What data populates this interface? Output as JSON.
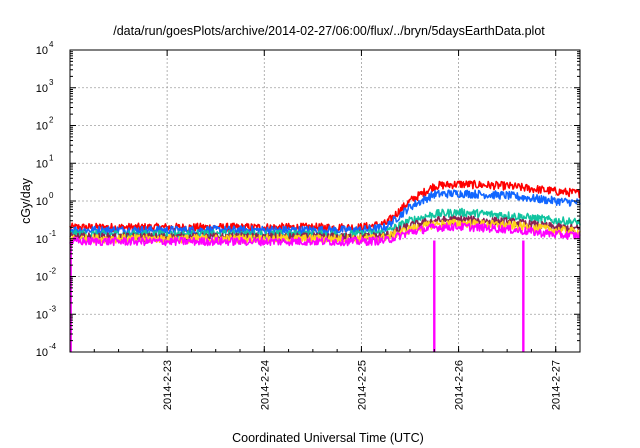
{
  "chart_data": {
    "type": "line",
    "title": "/data/run/goesPlots/archive/2014-02-27/06:00/flux/../bryn/5daysEarthData.plot",
    "xlabel": "Coordinated Universal Time (UTC)",
    "ylabel": "cGy/day",
    "y_scale": "log",
    "ylim": [
      0.0001,
      10000
    ],
    "y_ticks": [
      {
        "base": "10",
        "exp": "-4",
        "value": 0.0001
      },
      {
        "base": "10",
        "exp": "-3",
        "value": 0.001
      },
      {
        "base": "10",
        "exp": "-2",
        "value": 0.01
      },
      {
        "base": "10",
        "exp": "-1",
        "value": 0.1
      },
      {
        "base": "10",
        "exp": "0",
        "value": 1
      },
      {
        "base": "10",
        "exp": "1",
        "value": 10
      },
      {
        "base": "10",
        "exp": "2",
        "value": 100
      },
      {
        "base": "10",
        "exp": "3",
        "value": 1000
      },
      {
        "base": "10",
        "exp": "4",
        "value": 10000
      }
    ],
    "xlim": [
      "2014-02-22 00:00",
      "2014-02-27 06:00"
    ],
    "x_ticks": [
      "2014-2-23",
      "2014-2-24",
      "2014-2-25",
      "2014-2-26",
      "2014-2-27"
    ],
    "grid": true,
    "series": [
      {
        "color": "#ff0000",
        "x": [
          "2014-02-22 00:00",
          "2014-02-25 00:00",
          "2014-02-25 06:00",
          "2014-02-25 12:00",
          "2014-02-25 18:00",
          "2014-02-26 00:00",
          "2014-02-26 12:00",
          "2014-02-27 00:00",
          "2014-02-27 06:00"
        ],
        "values": [
          0.2,
          0.2,
          0.25,
          1.0,
          2.5,
          2.8,
          2.5,
          1.8,
          1.6
        ]
      },
      {
        "color": "#1166ff",
        "x": [
          "2014-02-22 00:00",
          "2014-02-25 00:00",
          "2014-02-25 06:00",
          "2014-02-25 12:00",
          "2014-02-25 18:00",
          "2014-02-26 00:00",
          "2014-02-26 12:00",
          "2014-02-27 00:00",
          "2014-02-27 06:00"
        ],
        "values": [
          0.17,
          0.17,
          0.2,
          0.7,
          1.5,
          1.6,
          1.4,
          1.0,
          0.9
        ]
      },
      {
        "color": "#11c4a0",
        "x": [
          "2014-02-22 00:00",
          "2014-02-25 00:00",
          "2014-02-25 06:00",
          "2014-02-25 12:00",
          "2014-02-25 18:00",
          "2014-02-26 00:00",
          "2014-02-26 12:00",
          "2014-02-27 00:00",
          "2014-02-27 06:00"
        ],
        "values": [
          0.13,
          0.13,
          0.15,
          0.3,
          0.45,
          0.5,
          0.42,
          0.3,
          0.27
        ]
      },
      {
        "color": "#8b2252",
        "x": [
          "2014-02-22 00:00",
          "2014-02-25 00:00",
          "2014-02-25 06:00",
          "2014-02-25 12:00",
          "2014-02-25 18:00",
          "2014-02-26 00:00",
          "2014-02-26 12:00",
          "2014-02-27 00:00",
          "2014-02-27 06:00"
        ],
        "values": [
          0.11,
          0.11,
          0.12,
          0.22,
          0.3,
          0.32,
          0.28,
          0.2,
          0.18
        ]
      },
      {
        "color": "#ffd21a",
        "x": [
          "2014-02-22 00:00",
          "2014-02-25 00:00",
          "2014-02-25 06:00",
          "2014-02-25 12:00",
          "2014-02-25 18:00",
          "2014-02-26 00:00",
          "2014-02-26 12:00",
          "2014-02-27 00:00",
          "2014-02-27 06:00"
        ],
        "values": [
          0.1,
          0.1,
          0.11,
          0.18,
          0.24,
          0.26,
          0.23,
          0.17,
          0.15
        ]
      },
      {
        "color": "#ff00ff",
        "x": [
          "2014-02-22 00:00",
          "2014-02-25 00:00",
          "2014-02-25 06:00",
          "2014-02-25 12:00",
          "2014-02-25 18:00",
          "2014-02-26 00:00",
          "2014-02-26 12:00",
          "2014-02-27 00:00",
          "2014-02-27 06:00"
        ],
        "values": [
          0.085,
          0.085,
          0.09,
          0.15,
          0.2,
          0.21,
          0.18,
          0.13,
          0.12
        ]
      }
    ],
    "dropouts": [
      {
        "x": "2014-02-22 00:10",
        "value": 0.0001,
        "series_color": "#ff00ff"
      },
      {
        "x": "2014-02-25 18:00",
        "value": 0.0001,
        "series_color": "#ff00ff"
      },
      {
        "x": "2014-02-26 16:00",
        "value": 0.0001,
        "series_color": "#ff00ff"
      }
    ]
  }
}
